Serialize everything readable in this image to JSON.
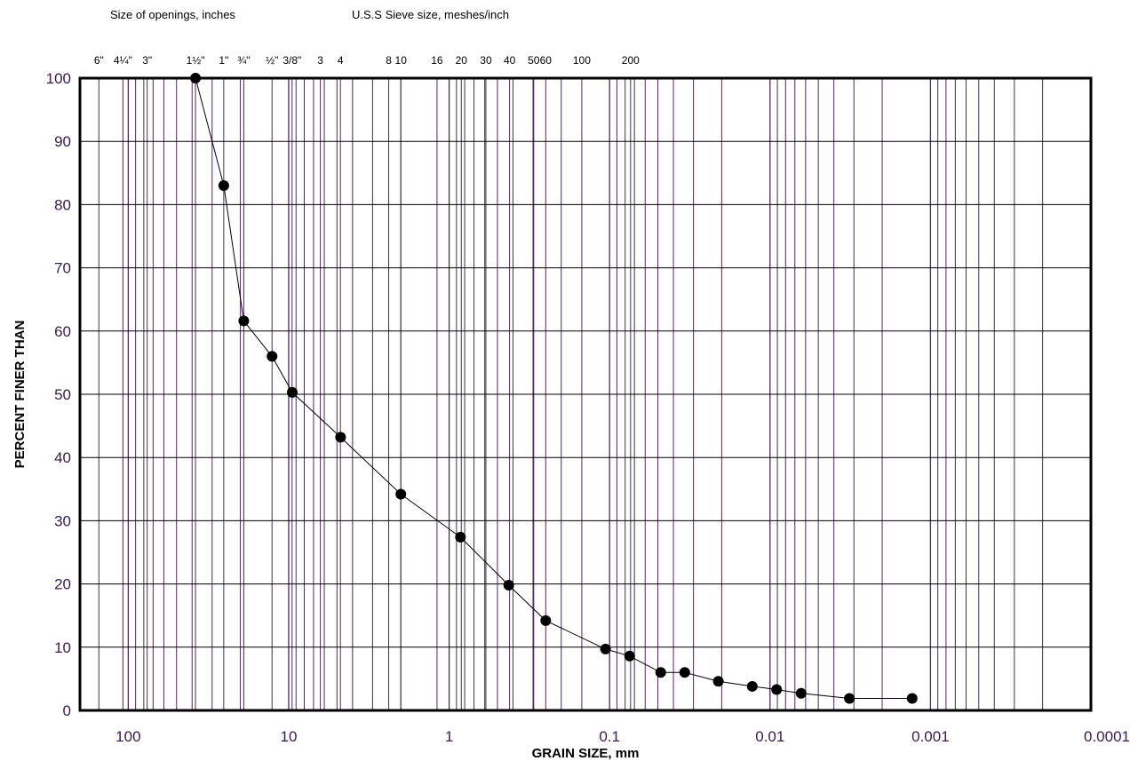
{
  "header": {
    "openings_label": "Size of openings, inches",
    "sieve_label": "U.S.S Sieve size, meshes/inch"
  },
  "chart_data": {
    "type": "scatter",
    "title": "",
    "xlabel": "GRAIN SIZE, mm",
    "ylabel": "PERCENT FINER THAN",
    "x_scale": "log",
    "x_reversed": true,
    "xlim": [
      200,
      0.0001
    ],
    "ylim": [
      0,
      100
    ],
    "grid": true,
    "yticks": [
      0,
      10,
      20,
      30,
      40,
      50,
      60,
      70,
      80,
      90,
      100
    ],
    "xticks": [
      {
        "value": 100,
        "label": "100"
      },
      {
        "value": 10,
        "label": "10"
      },
      {
        "value": 1,
        "label": "1"
      },
      {
        "value": 0.1,
        "label": "0.1"
      },
      {
        "value": 0.01,
        "label": "0.01"
      },
      {
        "value": 0.001,
        "label": "0.001"
      },
      {
        "value": 0.0001,
        "label": "0.0001"
      }
    ],
    "top_ticks": [
      {
        "value": 152.4,
        "label": "6\""
      },
      {
        "value": 107.95,
        "label": "4¼\""
      },
      {
        "value": 76.2,
        "label": "3\""
      },
      {
        "value": 38.1,
        "label": "1½\""
      },
      {
        "value": 25.4,
        "label": "1\""
      },
      {
        "value": 19.05,
        "label": "¾\""
      },
      {
        "value": 12.7,
        "label": "½\""
      },
      {
        "value": 9.525,
        "label": "3/8\""
      },
      {
        "value": 6.35,
        "label": "3"
      },
      {
        "value": 4.76,
        "label": "4"
      },
      {
        "value": 2.38,
        "label": "8"
      },
      {
        "value": 2.0,
        "label": "10"
      },
      {
        "value": 1.19,
        "label": "16"
      },
      {
        "value": 0.84,
        "label": "20"
      },
      {
        "value": 0.59,
        "label": "30"
      },
      {
        "value": 0.42,
        "label": "40"
      },
      {
        "value": 0.297,
        "label": "50"
      },
      {
        "value": 0.25,
        "label": "60"
      },
      {
        "value": 0.149,
        "label": "100"
      },
      {
        "value": 0.074,
        "label": "200"
      }
    ],
    "series": [
      {
        "x": [
          38.1,
          25.4,
          19.05,
          12.7,
          9.5,
          4.75,
          2.0,
          0.85,
          0.425,
          0.25,
          0.106,
          0.075,
          0.048,
          0.034,
          0.021,
          0.0129,
          0.0091,
          0.0064,
          0.0032,
          0.0013
        ],
        "y": [
          100,
          83,
          61.6,
          56,
          50.3,
          43.2,
          34.2,
          27.4,
          19.8,
          14.2,
          9.7,
          8.6,
          6.0,
          6.0,
          4.6,
          3.8,
          3.3,
          2.7,
          1.9,
          1.9
        ]
      }
    ]
  }
}
